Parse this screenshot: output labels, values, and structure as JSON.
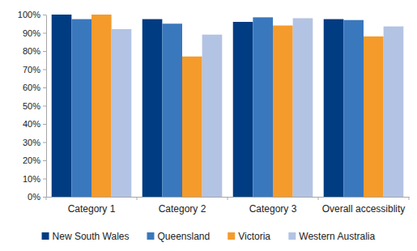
{
  "chart_data": {
    "type": "bar",
    "categories": [
      "Category 1",
      "Category 2",
      "Category 3",
      "Overall accessiblity"
    ],
    "series": [
      {
        "name": "New South Wales",
        "color": "#003c82",
        "values": [
          100,
          97.5,
          96,
          97.5
        ]
      },
      {
        "name": "Queensland",
        "color": "#3a78bd",
        "values": [
          97.5,
          95,
          98.5,
          97
        ]
      },
      {
        "name": "Victoria",
        "color": "#f59b2b",
        "values": [
          100,
          77,
          94,
          88
        ]
      },
      {
        "name": "Western Australia",
        "color": "#b3c3e3",
        "values": [
          92,
          89,
          98,
          93.5
        ]
      }
    ],
    "ylim": [
      0,
      100
    ],
    "yticks": [
      {
        "value": 0,
        "label": "0%"
      },
      {
        "value": 10,
        "label": "10%"
      },
      {
        "value": 20,
        "label": "20%"
      },
      {
        "value": 30,
        "label": "30%"
      },
      {
        "value": 40,
        "label": "40%"
      },
      {
        "value": 50,
        "label": "50%"
      },
      {
        "value": 60,
        "label": "60%"
      },
      {
        "value": 70,
        "label": "70%"
      },
      {
        "value": 80,
        "label": "80%"
      },
      {
        "value": 90,
        "label": "90%"
      },
      {
        "value": 100,
        "label": "100%"
      }
    ],
    "grid": false,
    "legend": "bottom"
  }
}
